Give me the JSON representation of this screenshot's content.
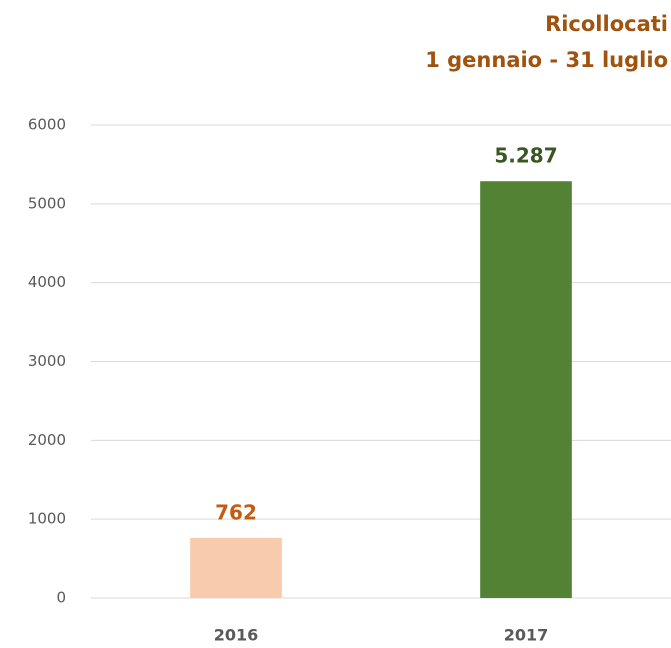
{
  "chart_data": {
    "type": "bar",
    "title": "Ricollocati",
    "subtitle": "1 gennaio -  31 luglio",
    "categories": [
      "2016",
      "2017"
    ],
    "values": [
      762,
      5287
    ],
    "value_labels": [
      "762",
      "5.287"
    ],
    "colors": [
      "#f8cbad",
      "#548235"
    ],
    "value_label_colors": [
      "#c55a11",
      "#385723"
    ],
    "ylim": [
      0,
      6000
    ],
    "yticks": [
      0,
      1000,
      2000,
      3000,
      4000,
      5000,
      6000
    ],
    "grid": true
  }
}
